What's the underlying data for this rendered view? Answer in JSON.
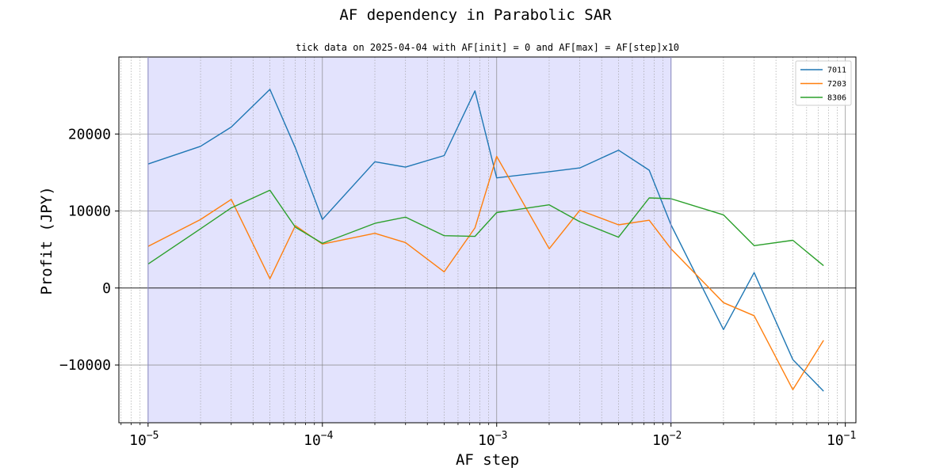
{
  "chart_data": {
    "type": "line",
    "title": "AF dependency in Parabolic SAR",
    "subtitle": "tick data on 2025-04-04 with AF[init] = 0 and AF[max] = AF[step]x10",
    "xlabel": "AF step",
    "ylabel": "Profit (JPY)",
    "xscale": "log",
    "xlim": [
      6.8e-06,
      0.115
    ],
    "ylim": [
      -17500,
      30000
    ],
    "grid": true,
    "legend_position": "top-right",
    "shaded_x_range": [
      1e-05,
      0.01
    ],
    "shade_color": "#e3e3fd",
    "x_ticks": [
      {
        "value": 1e-05,
        "base": "10",
        "exp": "−5"
      },
      {
        "value": 0.0001,
        "base": "10",
        "exp": "−4"
      },
      {
        "value": 0.001,
        "base": "10",
        "exp": "−3"
      },
      {
        "value": 0.01,
        "base": "10",
        "exp": "−2"
      },
      {
        "value": 0.1,
        "base": "10",
        "exp": "−1"
      }
    ],
    "y_ticks": [
      {
        "value": -10000,
        "label": "−10000"
      },
      {
        "value": 0,
        "label": "0"
      },
      {
        "value": 10000,
        "label": "10000"
      },
      {
        "value": 20000,
        "label": "20000"
      }
    ],
    "x": [
      1e-05,
      2e-05,
      3e-05,
      5e-05,
      7e-05,
      0.0001,
      0.0002,
      0.0003,
      0.0005,
      0.00075,
      0.001,
      0.002,
      0.003,
      0.005,
      0.0075,
      0.01,
      0.02,
      0.03,
      0.05,
      0.075
    ],
    "series": [
      {
        "name": "7011",
        "color": "#1f77b4",
        "values": [
          16100,
          18400,
          20900,
          25800,
          18200,
          8900,
          16400,
          15700,
          17200,
          25600,
          14300,
          15100,
          15600,
          17900,
          15300,
          8200,
          -5400,
          2000,
          -9300,
          -13400
        ]
      },
      {
        "name": "7203",
        "color": "#ff7f0e",
        "values": [
          5400,
          8900,
          11500,
          1200,
          8100,
          5700,
          7100,
          5900,
          2100,
          7800,
          17100,
          5100,
          10100,
          8200,
          8800,
          5100,
          -1900,
          -3600,
          -13200,
          -6800
        ]
      },
      {
        "name": "8306",
        "color": "#2ca02c",
        "values": [
          3100,
          7700,
          10400,
          12700,
          7900,
          5800,
          8400,
          9200,
          6800,
          6700,
          9800,
          10800,
          8600,
          6600,
          11700,
          11600,
          9500,
          5500,
          6200,
          2900
        ]
      }
    ]
  }
}
